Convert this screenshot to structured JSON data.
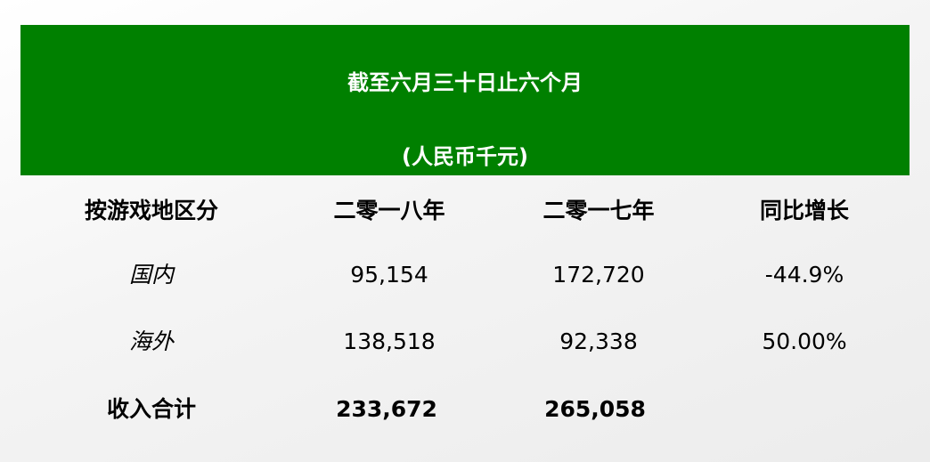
{
  "banner": {
    "title": "截至六月三十日止六个月",
    "unit": "(人民币千元)",
    "color": "#008000"
  },
  "table": {
    "headers": [
      "按游戏地区分",
      "二零一八年",
      "二零一七年",
      "同比增长"
    ],
    "rows": [
      {
        "region": "国内",
        "y2018": "95,154",
        "y2017": "172,720",
        "growth": "-44.9%"
      },
      {
        "region": "海外",
        "y2018": "138,518",
        "y2017": "92,338",
        "growth": "50.00%"
      }
    ],
    "total": {
      "label": "收入合计",
      "y2018": "233,672",
      "y2017": "265,058",
      "growth": ""
    }
  }
}
